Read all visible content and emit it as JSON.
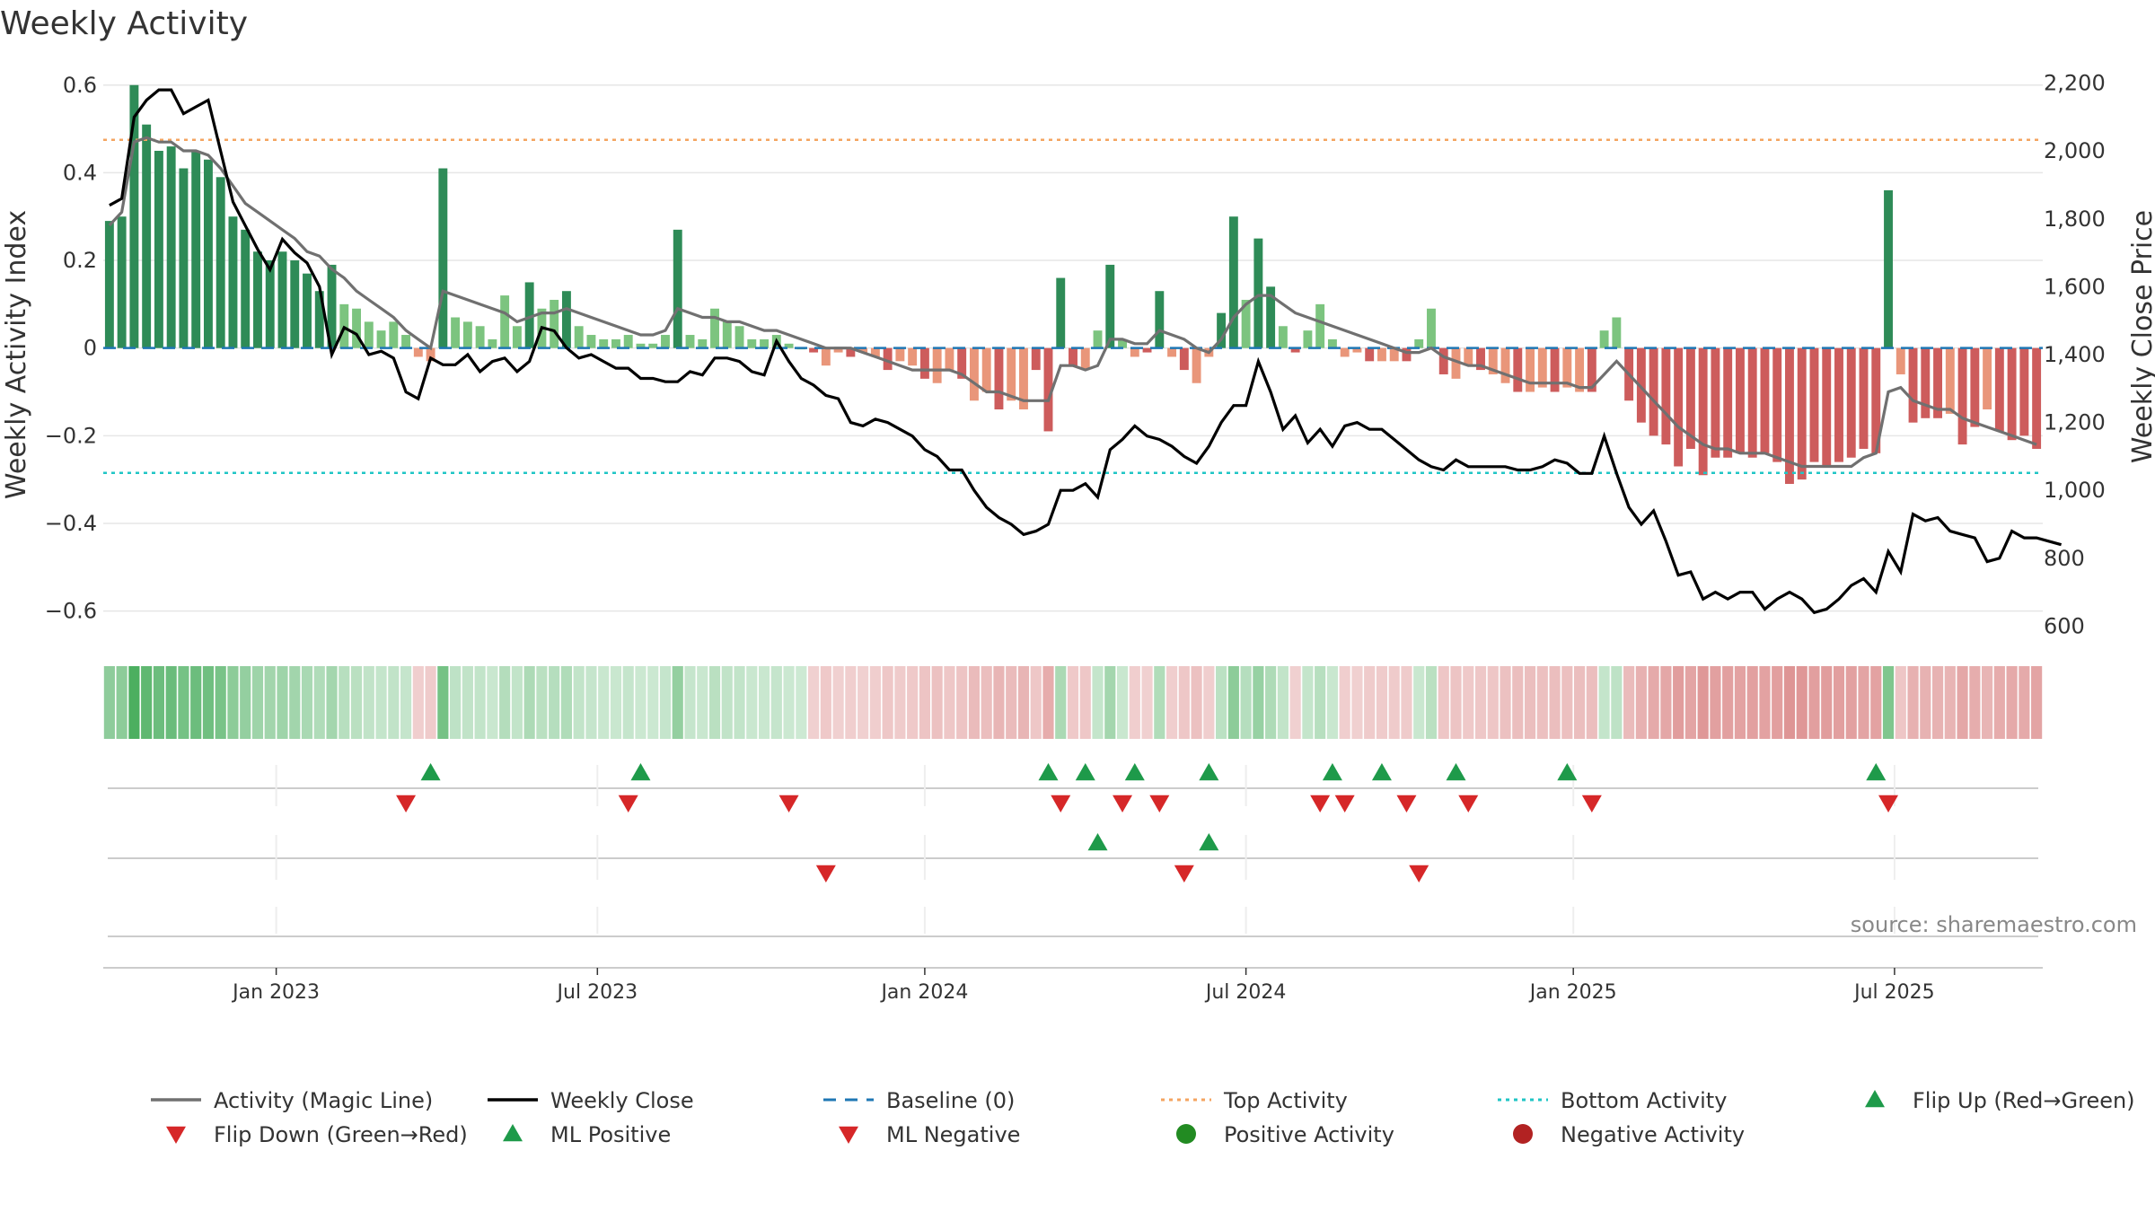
{
  "chart_data": {
    "type": "bar",
    "title": "Weekly Activity",
    "ylabel_left": "Weekly Activity Index",
    "ylabel_right": "Weekly Close Price",
    "source": "source: sharemaestro.com",
    "left_axis": {
      "ylim": [
        -0.65,
        0.62
      ],
      "ticks": [
        0.6,
        0.4,
        0.2,
        0,
        -0.2,
        -0.4,
        -0.6
      ],
      "tick_labels": [
        "0.6",
        "0.4",
        "0.2",
        "0",
        "−0.2",
        "−0.4",
        "−0.6"
      ]
    },
    "right_axis": {
      "ylim": [
        580,
        2220
      ],
      "ticks": [
        2200,
        2000,
        1800,
        1600,
        1400,
        1200,
        1000,
        800,
        600
      ],
      "tick_labels": [
        "2,200",
        "2,000",
        "1,800",
        "1,600",
        "1,400",
        "1,200",
        "1,000",
        "800",
        "600"
      ]
    },
    "top_activity": 0.475,
    "bottom_activity": -0.285,
    "baseline": 0,
    "x_week_range": [
      0,
      157
    ],
    "x_ticks": [
      {
        "label": "Jan 2023",
        "week": 14
      },
      {
        "label": "Jul 2023",
        "week": 40
      },
      {
        "label": "Jan 2024",
        "week": 66.5
      },
      {
        "label": "Jul 2024",
        "week": 92.5
      },
      {
        "label": "Jan 2025",
        "week": 119
      },
      {
        "label": "Jul 2025",
        "week": 145
      }
    ],
    "activity": [
      0.29,
      0.3,
      0.6,
      0.51,
      0.45,
      0.46,
      0.41,
      0.45,
      0.43,
      0.39,
      0.3,
      0.27,
      0.22,
      0.2,
      0.22,
      0.2,
      0.17,
      0.13,
      0.19,
      0.1,
      0.09,
      0.06,
      0.04,
      0.06,
      0.03,
      -0.02,
      -0.03,
      0.41,
      0.07,
      0.06,
      0.05,
      0.02,
      0.12,
      0.05,
      0.15,
      0.09,
      0.11,
      0.13,
      0.05,
      0.03,
      0.02,
      0.02,
      0.03,
      0.01,
      0.01,
      0.03,
      0.27,
      0.03,
      0.02,
      0.09,
      0.06,
      0.05,
      0.02,
      0.02,
      0.03,
      0.01,
      0.0,
      -0.01,
      -0.04,
      -0.01,
      -0.02,
      -0.01,
      -0.02,
      -0.05,
      -0.03,
      -0.04,
      -0.07,
      -0.08,
      -0.05,
      -0.07,
      -0.12,
      -0.1,
      -0.14,
      -0.12,
      -0.14,
      -0.05,
      -0.19,
      0.16,
      -0.04,
      -0.05,
      0.04,
      0.19,
      0.02,
      -0.02,
      -0.01,
      0.13,
      -0.02,
      -0.05,
      -0.08,
      -0.02,
      0.08,
      0.3,
      0.11,
      0.25,
      0.14,
      0.05,
      -0.01,
      0.04,
      0.1,
      0.02,
      -0.02,
      -0.01,
      -0.03,
      -0.03,
      -0.03,
      -0.03,
      0.02,
      0.09,
      -0.06,
      -0.07,
      -0.04,
      -0.05,
      -0.06,
      -0.08,
      -0.1,
      -0.1,
      -0.09,
      -0.1,
      -0.09,
      -0.1,
      -0.1,
      0.04,
      0.07,
      -0.12,
      -0.17,
      -0.2,
      -0.22,
      -0.27,
      -0.23,
      -0.29,
      -0.25,
      -0.25,
      -0.24,
      -0.25,
      -0.24,
      -0.26,
      -0.31,
      -0.3,
      -0.26,
      -0.27,
      -0.26,
      -0.25,
      -0.23,
      -0.24,
      0.36,
      -0.06,
      -0.17,
      -0.16,
      -0.16,
      -0.15,
      -0.22,
      -0.18,
      -0.14,
      -0.19,
      -0.21,
      -0.2,
      -0.23
    ],
    "magic_line": [
      0.28,
      0.31,
      0.47,
      0.48,
      0.47,
      0.47,
      0.45,
      0.45,
      0.44,
      0.41,
      0.37,
      0.33,
      0.31,
      0.29,
      0.27,
      0.25,
      0.22,
      0.21,
      0.18,
      0.16,
      0.13,
      0.11,
      0.09,
      0.07,
      0.04,
      0.02,
      0.0,
      0.13,
      0.12,
      0.11,
      0.1,
      0.09,
      0.08,
      0.06,
      0.07,
      0.08,
      0.08,
      0.09,
      0.08,
      0.07,
      0.06,
      0.05,
      0.04,
      0.03,
      0.03,
      0.04,
      0.09,
      0.08,
      0.07,
      0.07,
      0.06,
      0.06,
      0.05,
      0.04,
      0.04,
      0.03,
      0.02,
      0.01,
      0.0,
      0.0,
      0.0,
      -0.01,
      -0.02,
      -0.03,
      -0.04,
      -0.05,
      -0.05,
      -0.05,
      -0.05,
      -0.06,
      -0.08,
      -0.1,
      -0.1,
      -0.11,
      -0.12,
      -0.12,
      -0.12,
      -0.04,
      -0.04,
      -0.05,
      -0.04,
      0.02,
      0.02,
      0.01,
      0.01,
      0.04,
      0.03,
      0.02,
      0.0,
      -0.01,
      0.02,
      0.07,
      0.1,
      0.12,
      0.12,
      0.1,
      0.08,
      0.07,
      0.06,
      0.05,
      0.04,
      0.03,
      0.02,
      0.01,
      0.0,
      -0.01,
      -0.01,
      0.0,
      -0.02,
      -0.03,
      -0.04,
      -0.04,
      -0.05,
      -0.06,
      -0.07,
      -0.08,
      -0.08,
      -0.08,
      -0.08,
      -0.09,
      -0.09,
      -0.06,
      -0.03,
      -0.06,
      -0.09,
      -0.12,
      -0.15,
      -0.18,
      -0.2,
      -0.22,
      -0.23,
      -0.23,
      -0.24,
      -0.24,
      -0.24,
      -0.25,
      -0.26,
      -0.27,
      -0.27,
      -0.27,
      -0.27,
      -0.27,
      -0.25,
      -0.24,
      -0.1,
      -0.09,
      -0.12,
      -0.13,
      -0.14,
      -0.14,
      -0.16,
      -0.17,
      -0.18,
      -0.19,
      -0.2,
      -0.21,
      -0.22
    ],
    "weekly_close": [
      1840,
      1860,
      2100,
      2150,
      2180,
      2180,
      2110,
      2130,
      2150,
      2000,
      1850,
      1780,
      1710,
      1650,
      1740,
      1700,
      1670,
      1600,
      1400,
      1480,
      1460,
      1400,
      1410,
      1390,
      1290,
      1270,
      1390,
      1370,
      1370,
      1400,
      1350,
      1380,
      1390,
      1350,
      1380,
      1480,
      1470,
      1420,
      1390,
      1400,
      1380,
      1360,
      1360,
      1330,
      1330,
      1320,
      1320,
      1350,
      1340,
      1390,
      1390,
      1380,
      1350,
      1340,
      1440,
      1380,
      1330,
      1310,
      1280,
      1270,
      1200,
      1190,
      1210,
      1200,
      1180,
      1160,
      1120,
      1100,
      1060,
      1060,
      1000,
      950,
      920,
      900,
      870,
      880,
      900,
      1000,
      1000,
      1020,
      980,
      1120,
      1150,
      1190,
      1160,
      1150,
      1130,
      1100,
      1080,
      1130,
      1200,
      1250,
      1250,
      1380,
      1290,
      1180,
      1220,
      1140,
      1180,
      1130,
      1190,
      1200,
      1180,
      1180,
      1150,
      1120,
      1090,
      1070,
      1060,
      1090,
      1070,
      1070,
      1070,
      1070,
      1060,
      1060,
      1070,
      1090,
      1080,
      1050,
      1050,
      1160,
      1050,
      950,
      900,
      940,
      850,
      750,
      760,
      680,
      700,
      680,
      700,
      700,
      650,
      680,
      700,
      680,
      640,
      650,
      680,
      720,
      740,
      700,
      820,
      760,
      930,
      910,
      920,
      880,
      870,
      860,
      790,
      800,
      880,
      860,
      860,
      850,
      840
    ],
    "flip_up": [
      26,
      43,
      76,
      79,
      83,
      89,
      99,
      103,
      109,
      118,
      143
    ],
    "flip_down": [
      24,
      42,
      55,
      77,
      82,
      85,
      98,
      100,
      105,
      110,
      120,
      144
    ],
    "ml_positive": [
      80,
      89
    ],
    "ml_negative": [
      58,
      87,
      106
    ],
    "colors": {
      "strong_green": "#2e8b57",
      "light_green": "#7cc47f",
      "strong_red": "#cd5c5c",
      "light_red": "#e9967a",
      "magic_line": "#707070",
      "weekly_close": "#000000",
      "baseline": "#1f77b4",
      "top_activity": "#f4a460",
      "bottom_activity": "#20c5c5",
      "flip_up": "#1e9a4a",
      "flip_down": "#d62728",
      "positive_dot": "#228b22",
      "negative_dot": "#b22222"
    },
    "legend": [
      {
        "label": "Activity (Magic Line)",
        "kind": "line",
        "color": "#707070"
      },
      {
        "label": "Weekly Close",
        "kind": "line",
        "color": "#000000"
      },
      {
        "label": "Baseline (0)",
        "kind": "dashed",
        "color": "#1f77b4"
      },
      {
        "label": "Top Activity",
        "kind": "dotted",
        "color": "#f4a460"
      },
      {
        "label": "Bottom Activity",
        "kind": "dotted",
        "color": "#20c5c5"
      },
      {
        "label": "Flip Up (Red→Green)",
        "kind": "triangle-up",
        "color": "#1e9a4a"
      },
      {
        "label": "Flip Down (Green→Red)",
        "kind": "triangle-down",
        "color": "#d62728"
      },
      {
        "label": "ML Positive",
        "kind": "triangle-up",
        "color": "#1e9a4a"
      },
      {
        "label": "ML Negative",
        "kind": "triangle-down",
        "color": "#d62728"
      },
      {
        "label": "Positive Activity",
        "kind": "dot",
        "color": "#228b22"
      },
      {
        "label": "Negative Activity",
        "kind": "dot",
        "color": "#b22222"
      }
    ]
  }
}
